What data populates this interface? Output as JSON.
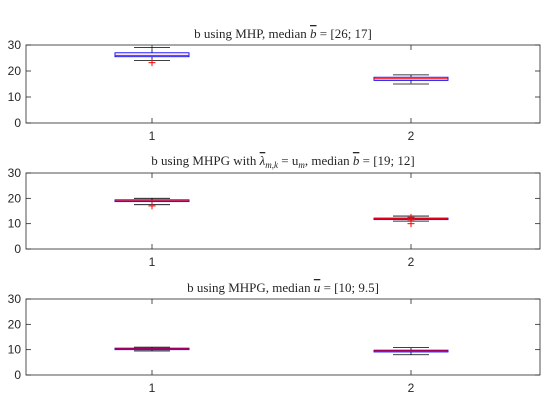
{
  "chart_data": [
    {
      "type": "box",
      "title": "b using MHP, median b̄ = [26; 17]",
      "title_parts": {
        "prefix": "b using MHP, median ",
        "symbol": "b",
        "suffix": " = [26; 17]"
      },
      "categories": [
        "1",
        "2"
      ],
      "ylim": [
        0,
        30
      ],
      "yticks": [
        0,
        10,
        20,
        30
      ],
      "boxes": [
        {
          "category": "1",
          "whisker_low": 24,
          "q1": 25.5,
          "median": 26,
          "q3": 27,
          "whisker_high": 29,
          "outliers": [
            23.2
          ]
        },
        {
          "category": "2",
          "whisker_low": 15,
          "q1": 16.4,
          "median": 17,
          "q3": 17.6,
          "whisker_high": 18.5,
          "outliers": []
        }
      ]
    },
    {
      "type": "box",
      "title": "b using MHPG with λ̄m,k = um, median b̄ = [19; 12]",
      "title_parts": {
        "prefix": "b using MHPG with ",
        "lambda": "λ",
        "sub": "m,k",
        "mid": " = u",
        "sub2": "m",
        "mid2": ", median ",
        "symbol": "b",
        "suffix": " = [19; 12]"
      },
      "categories": [
        "1",
        "2"
      ],
      "ylim": [
        0,
        30
      ],
      "yticks": [
        0,
        10,
        20,
        30
      ],
      "boxes": [
        {
          "category": "1",
          "whisker_low": 17.5,
          "q1": 18.7,
          "median": 19,
          "q3": 19.4,
          "whisker_high": 20,
          "outliers": [
            17
          ]
        },
        {
          "category": "2",
          "whisker_low": 11,
          "q1": 11.6,
          "median": 12,
          "q3": 12.2,
          "whisker_high": 13,
          "outliers": [
            10,
            11.5,
            12.5
          ]
        }
      ]
    },
    {
      "type": "box",
      "title": "b using MHPG, median ū = [10; 9.5]",
      "title_parts": {
        "prefix": "b using MHPG, median ",
        "symbol": "u",
        "suffix": " = [10; 9.5]"
      },
      "categories": [
        "1",
        "2"
      ],
      "ylim": [
        0,
        30
      ],
      "yticks": [
        0,
        10,
        20,
        30
      ],
      "boxes": [
        {
          "category": "1",
          "whisker_low": 9.5,
          "q1": 10,
          "median": 10.3,
          "q3": 10.6,
          "whisker_high": 11,
          "outliers": []
        },
        {
          "category": "2",
          "whisker_low": 8,
          "q1": 9.1,
          "median": 9.5,
          "q3": 9.8,
          "whisker_high": 10.8,
          "outliers": []
        }
      ]
    }
  ],
  "colors": {
    "box": "#0000ff",
    "median": "#ff0000",
    "whisker": "#000000",
    "outlier": "#ff0000",
    "axis": "#262626"
  }
}
